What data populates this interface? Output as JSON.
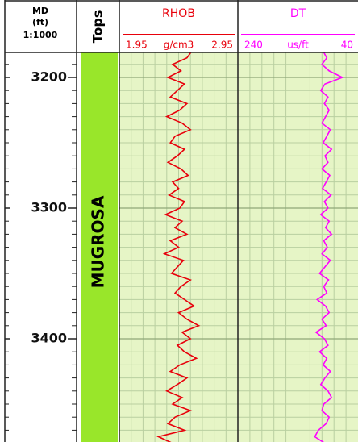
{
  "chart_data": {
    "type": "well_log",
    "depth_header": [
      "MD",
      "(ft)",
      "1:1000"
    ],
    "tops_title": "Tops",
    "tops": [
      {
        "name": "MUGROSA",
        "color": "#99e62a"
      }
    ],
    "ylim": [
      3180,
      3480
    ],
    "yticks": [
      3200,
      3300,
      3400
    ],
    "yticks_minor": [
      3190,
      3210,
      3220,
      3230,
      3240,
      3250,
      3260,
      3270,
      3280,
      3290,
      3310,
      3320,
      3330,
      3340,
      3350,
      3360,
      3370,
      3380,
      3390,
      3410,
      3420,
      3430,
      3440,
      3450,
      3460,
      3470
    ],
    "grid": true,
    "depths": [
      3180,
      3185,
      3190,
      3195,
      3200,
      3205,
      3210,
      3215,
      3220,
      3225,
      3230,
      3235,
      3240,
      3245,
      3250,
      3255,
      3260,
      3265,
      3270,
      3275,
      3280,
      3285,
      3290,
      3295,
      3300,
      3305,
      3310,
      3315,
      3320,
      3325,
      3330,
      3335,
      3340,
      3345,
      3350,
      3355,
      3360,
      3365,
      3370,
      3375,
      3380,
      3385,
      3390,
      3395,
      3400,
      3405,
      3410,
      3415,
      3420,
      3425,
      3430,
      3435,
      3440,
      3445,
      3450,
      3455,
      3460,
      3465,
      3470,
      3475,
      3480
    ],
    "series": [
      {
        "name": "RHOB",
        "color": "#e8000b",
        "unit": "g/cm3",
        "xlim": [
          1.95,
          2.95
        ],
        "values": [
          2.56,
          2.52,
          2.4,
          2.47,
          2.36,
          2.5,
          2.44,
          2.38,
          2.52,
          2.46,
          2.35,
          2.48,
          2.55,
          2.42,
          2.38,
          2.5,
          2.44,
          2.36,
          2.47,
          2.53,
          2.4,
          2.45,
          2.37,
          2.5,
          2.46,
          2.34,
          2.48,
          2.42,
          2.52,
          2.38,
          2.45,
          2.33,
          2.49,
          2.44,
          2.39,
          2.55,
          2.47,
          2.42,
          2.5,
          2.58,
          2.45,
          2.52,
          2.62,
          2.48,
          2.55,
          2.44,
          2.5,
          2.6,
          2.46,
          2.38,
          2.52,
          2.44,
          2.35,
          2.48,
          2.4,
          2.55,
          2.42,
          2.36,
          2.5,
          2.28,
          2.4
        ]
      },
      {
        "name": "DT",
        "color": "#ff00ff",
        "unit": "us/ft",
        "xlim": [
          240,
          40
        ],
        "values": [
          98,
          92,
          100,
          88,
          66,
          95,
          102,
          90,
          96,
          88,
          94,
          100,
          86,
          92,
          98,
          84,
          95,
          90,
          100,
          87,
          93,
          99,
          85,
          96,
          90,
          102,
          88,
          94,
          84,
          97,
          91,
          100,
          86,
          95,
          104,
          89,
          97,
          92,
          108,
          94,
          88,
          100,
          93,
          110,
          96,
          90,
          104,
          92,
          98,
          86,
          95,
          102,
          90,
          84,
          97,
          100,
          88,
          93,
          106,
          112,
          95
        ]
      }
    ]
  }
}
